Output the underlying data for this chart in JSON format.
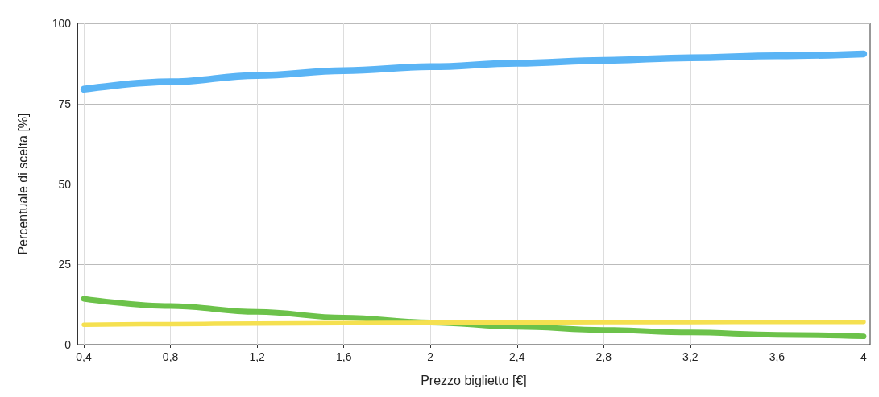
{
  "chart_data": {
    "type": "line",
    "xlabel": "Prezzo biglietto [€]",
    "ylabel": "Percentuale di scelta [%]",
    "x": [
      0.4,
      0.8,
      1.2,
      1.6,
      2,
      2.4,
      2.8,
      3.2,
      3.6,
      4
    ],
    "series": [
      {
        "color": "#5ab4f5",
        "values": [
          79.5,
          81.8,
          83.8,
          85.3,
          86.5,
          87.6,
          88.5,
          89.3,
          89.9,
          90.5
        ]
      },
      {
        "color": "#6cc24a",
        "values": [
          14.3,
          12,
          10.2,
          8.4,
          6.9,
          5.6,
          4.6,
          3.8,
          3.1,
          2.6
        ]
      },
      {
        "color": "#f5e050",
        "values": [
          6.2,
          6.4,
          6.6,
          6.7,
          6.8,
          6.9,
          7,
          7,
          7.1,
          7.1
        ]
      }
    ],
    "xlim": [
      0.37,
      4.03
    ],
    "xticks": [
      {
        "value": 0.4,
        "label": "0,4"
      },
      {
        "value": 0.8,
        "label": "0,8"
      },
      {
        "value": 1.2,
        "label": "1,2"
      },
      {
        "value": 1.6,
        "label": "1,6"
      },
      {
        "value": 2,
        "label": "2"
      },
      {
        "value": 2.4,
        "label": "2,4"
      },
      {
        "value": 2.8,
        "label": "2,8"
      },
      {
        "value": 3.2,
        "label": "3,2"
      },
      {
        "value": 3.6,
        "label": "3,6"
      },
      {
        "value": 4,
        "label": "4"
      }
    ],
    "ylim": [
      0,
      100
    ],
    "yticks": [
      0,
      25,
      50,
      75,
      100
    ],
    "grid": true,
    "marker": "none",
    "line_style": "solid"
  }
}
